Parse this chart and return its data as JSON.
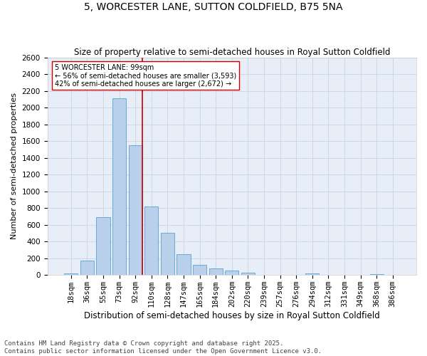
{
  "title": "5, WORCESTER LANE, SUTTON COLDFIELD, B75 5NA",
  "subtitle": "Size of property relative to semi-detached houses in Royal Sutton Coldfield",
  "xlabel": "Distribution of semi-detached houses by size in Royal Sutton Coldfield",
  "ylabel": "Number of semi-detached properties",
  "categories": [
    "18sqm",
    "36sqm",
    "55sqm",
    "73sqm",
    "92sqm",
    "110sqm",
    "128sqm",
    "147sqm",
    "165sqm",
    "184sqm",
    "202sqm",
    "220sqm",
    "239sqm",
    "257sqm",
    "276sqm",
    "294sqm",
    "312sqm",
    "331sqm",
    "349sqm",
    "368sqm",
    "386sqm"
  ],
  "values": [
    20,
    175,
    695,
    2110,
    1555,
    820,
    505,
    250,
    120,
    75,
    55,
    30,
    0,
    0,
    0,
    20,
    0,
    0,
    0,
    15,
    0
  ],
  "bar_color": "#b8d0ea",
  "bar_edge_color": "#6aaad4",
  "property_line_bin": 4,
  "property_label": "5 WORCESTER LANE: 99sqm",
  "smaller_pct": "56%",
  "smaller_count": "3,593",
  "larger_pct": "42%",
  "larger_count": "2,672",
  "line_color": "#cc0000",
  "box_edge_color": "#cc0000",
  "ylim": [
    0,
    2600
  ],
  "yticks": [
    0,
    200,
    400,
    600,
    800,
    1000,
    1200,
    1400,
    1600,
    1800,
    2000,
    2200,
    2400,
    2600
  ],
  "grid_color": "#c8d4e3",
  "bg_color": "#e8eef8",
  "footnote": "Contains HM Land Registry data © Crown copyright and database right 2025.\nContains public sector information licensed under the Open Government Licence v3.0.",
  "title_fontsize": 10,
  "subtitle_fontsize": 8.5,
  "xlabel_fontsize": 8.5,
  "ylabel_fontsize": 8,
  "tick_fontsize": 7.5,
  "footnote_fontsize": 6.5
}
